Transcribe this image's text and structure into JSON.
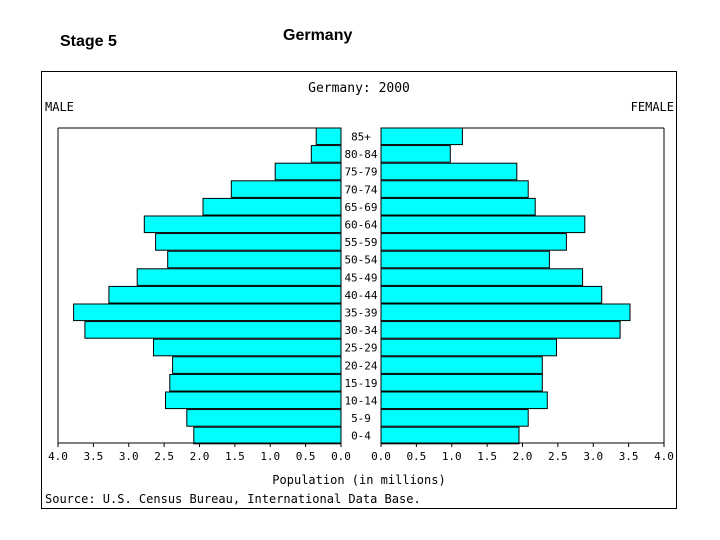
{
  "slide": {
    "stage_label": "Stage 5",
    "title": "Germany"
  },
  "chart_data": {
    "type": "bar",
    "orientation": "horizontal-pyramid",
    "title": "Germany: 2000",
    "left_label": "MALE",
    "right_label": "FEMALE",
    "xlabel": "Population (in millions)",
    "source": "Source: U.S. Census Bureau, International Data Base.",
    "xlim": [
      0,
      4.0
    ],
    "left_ticks": [
      "4.0",
      "3.5",
      "3.0",
      "2.5",
      "2.0",
      "1.5",
      "1.0",
      "0.5",
      "0.0"
    ],
    "right_ticks": [
      "0.0",
      "0.5",
      "1.0",
      "1.5",
      "2.0",
      "2.5",
      "3.0",
      "3.5",
      "4.0"
    ],
    "categories": [
      "85+",
      "80-84",
      "75-79",
      "70-74",
      "65-69",
      "60-64",
      "55-59",
      "50-54",
      "45-49",
      "40-44",
      "35-39",
      "30-34",
      "25-29",
      "20-24",
      "15-19",
      "10-14",
      "5-9",
      "0-4"
    ],
    "series": [
      {
        "name": "MALE",
        "values": [
          0.35,
          0.42,
          0.93,
          1.55,
          1.95,
          2.78,
          2.62,
          2.45,
          2.88,
          3.28,
          3.78,
          3.62,
          2.65,
          2.38,
          2.42,
          2.48,
          2.18,
          2.08
        ]
      },
      {
        "name": "FEMALE",
        "values": [
          1.15,
          0.98,
          1.92,
          2.08,
          2.18,
          2.88,
          2.62,
          2.38,
          2.85,
          3.12,
          3.52,
          3.38,
          2.48,
          2.28,
          2.28,
          2.35,
          2.08,
          1.95
        ]
      }
    ],
    "bar_color": "#00ffff",
    "bar_stroke": "#000000"
  }
}
